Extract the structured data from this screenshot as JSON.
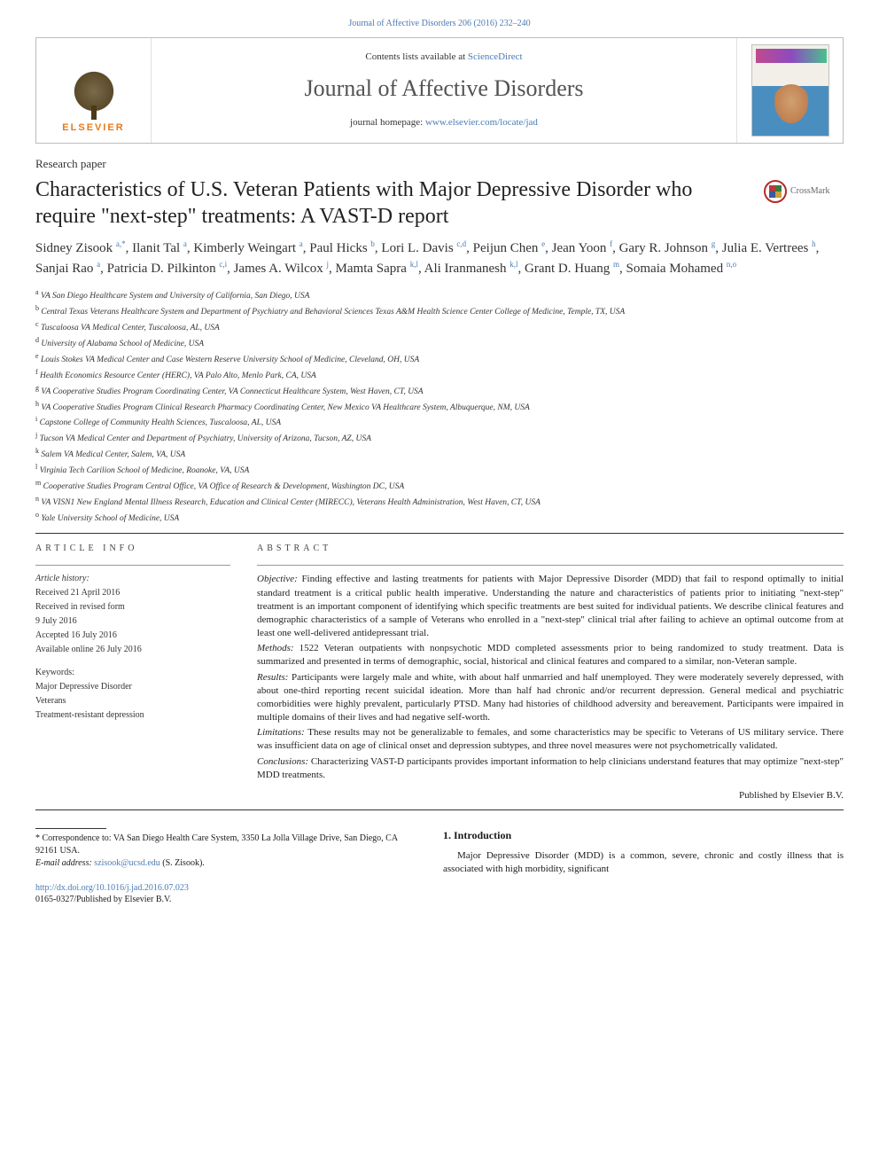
{
  "journal_ref": "Journal of Affective Disorders 206 (2016) 232–240",
  "banner": {
    "contents_prefix": "Contents lists available at ",
    "contents_link": "ScienceDirect",
    "journal_name": "Journal of Affective Disorders",
    "homepage_prefix": "journal homepage: ",
    "homepage_link": "www.elsevier.com/locate/jad",
    "elsevier": "ELSEVIER"
  },
  "article_type": "Research paper",
  "title": "Characteristics of U.S. Veteran Patients with Major Depressive Disorder who require \"next-step\" treatments: A VAST-D report",
  "crossmark_label": "CrossMark",
  "authors_html": "Sidney Zisook <sup>a,*</sup>, Ilanit Tal <sup>a</sup>, Kimberly Weingart <sup>a</sup>, Paul Hicks <sup>b</sup>, Lori L. Davis <sup>c,d</sup>, Peijun Chen <sup>e</sup>, Jean Yoon <sup>f</sup>, Gary R. Johnson <sup>g</sup>, Julia E. Vertrees <sup>h</sup>, Sanjai Rao <sup>a</sup>, Patricia D. Pilkinton <sup>c,i</sup>, James A. Wilcox <sup>j</sup>, Mamta Sapra <sup>k,l</sup>, Ali Iranmanesh <sup>k,l</sup>, Grant D. Huang <sup>m</sup>, Somaia Mohamed <sup>n,o</sup>",
  "affiliations": [
    {
      "key": "a",
      "text": "VA San Diego Healthcare System and University of California, San Diego, USA"
    },
    {
      "key": "b",
      "text": "Central Texas Veterans Healthcare System and Department of Psychiatry and Behavioral Sciences Texas A&M Health Science Center College of Medicine, Temple, TX, USA"
    },
    {
      "key": "c",
      "text": "Tuscaloosa VA Medical Center, Tuscaloosa, AL, USA"
    },
    {
      "key": "d",
      "text": "University of Alabama School of Medicine, USA"
    },
    {
      "key": "e",
      "text": "Louis Stokes VA Medical Center and Case Western Reserve University School of Medicine, Cleveland, OH, USA"
    },
    {
      "key": "f",
      "text": "Health Economics Resource Center (HERC), VA Palo Alto, Menlo Park, CA, USA"
    },
    {
      "key": "g",
      "text": "VA Cooperative Studies Program Coordinating Center, VA Connecticut Healthcare System, West Haven, CT, USA"
    },
    {
      "key": "h",
      "text": "VA Cooperative Studies Program Clinical Research Pharmacy Coordinating Center, New Mexico VA Healthcare System, Albuquerque, NM, USA"
    },
    {
      "key": "i",
      "text": "Capstone College of Community Health Sciences, Tuscaloosa, AL, USA"
    },
    {
      "key": "j",
      "text": "Tucson VA Medical Center and Department of Psychiatry, University of Arizona, Tucson, AZ, USA"
    },
    {
      "key": "k",
      "text": "Salem VA Medical Center, Salem, VA, USA"
    },
    {
      "key": "l",
      "text": "Virginia Tech Carilion School of Medicine, Roanoke, VA, USA"
    },
    {
      "key": "m",
      "text": "Cooperative Studies Program Central Office, VA Office of Research & Development, Washington DC, USA"
    },
    {
      "key": "n",
      "text": "VA VISN1 New England Mental Illness Research, Education and Clinical Center (MIRECC), Veterans Health Administration, West Haven, CT, USA"
    },
    {
      "key": "o",
      "text": "Yale University School of Medicine, USA"
    }
  ],
  "info": {
    "head": "ARTICLE INFO",
    "history_label": "Article history:",
    "received": "Received 21 April 2016",
    "revised1": "Received in revised form",
    "revised2": "9 July 2016",
    "accepted": "Accepted 16 July 2016",
    "online": "Available online 26 July 2016",
    "kw_label": "Keywords:",
    "kw": [
      "Major Depressive Disorder",
      "Veterans",
      "Treatment-resistant depression"
    ]
  },
  "abstract": {
    "head": "ABSTRACT",
    "objective_label": "Objective:",
    "objective": " Finding effective and lasting treatments for patients with Major Depressive Disorder (MDD) that fail to respond optimally to initial standard treatment is a critical public health imperative. Understanding the nature and characteristics of patients prior to initiating \"next-step\" treatment is an important component of identifying which specific treatments are best suited for individual patients. We describe clinical features and demographic characteristics of a sample of Veterans who enrolled in a \"next-step\" clinical trial after failing to achieve an optimal outcome from at least one well-delivered antidepressant trial.",
    "methods_label": "Methods:",
    "methods": " 1522 Veteran outpatients with nonpsychotic MDD completed assessments prior to being randomized to study treatment. Data is summarized and presented in terms of demographic, social, historical and clinical features and compared to a similar, non-Veteran sample.",
    "results_label": "Results:",
    "results": " Participants were largely male and white, with about half unmarried and half unemployed. They were moderately severely depressed, with about one-third reporting recent suicidal ideation. More than half had chronic and/or recurrent depression. General medical and psychiatric comorbidities were highly prevalent, particularly PTSD. Many had histories of childhood adversity and bereavement. Participants were impaired in multiple domains of their lives and had negative self-worth.",
    "limitations_label": "Limitations:",
    "limitations": " These results may not be generalizable to females, and some characteristics may be specific to Veterans of US military service. There was insufficient data on age of clinical onset and depression subtypes, and three novel measures were not psychometrically validated.",
    "conclusions_label": "Conclusions:",
    "conclusions": " Characterizing VAST-D participants provides important information to help clinicians understand features that may optimize \"next-step\" MDD treatments.",
    "published_by": "Published by Elsevier B.V."
  },
  "intro": {
    "head": "1. Introduction",
    "text": "Major Depressive Disorder (MDD) is a common, severe, chronic and costly illness that is associated with high morbidity, significant"
  },
  "footnote": {
    "corr": "* Correspondence to: VA San Diego Health Care System, 3350 La Jolla Village Drive, San Diego, CA 92161 USA.",
    "email_label": "E-mail address: ",
    "email": "szisook@ucsd.edu",
    "email_who": " (S. Zisook)."
  },
  "doi": {
    "link": "http://dx.doi.org/10.1016/j.jad.2016.07.023",
    "issn": "0165-0327/Published by Elsevier B.V."
  },
  "colors": {
    "link": "#4a7bb5",
    "text": "#1a1a1a",
    "elsevier_orange": "#e67a1a",
    "rule": "#333333"
  },
  "typography": {
    "body_pt": 12,
    "title_pt": 24,
    "journal_name_pt": 26,
    "authors_pt": 15,
    "aff_pt": 9.5,
    "abstract_pt": 11,
    "info_pt": 10
  }
}
